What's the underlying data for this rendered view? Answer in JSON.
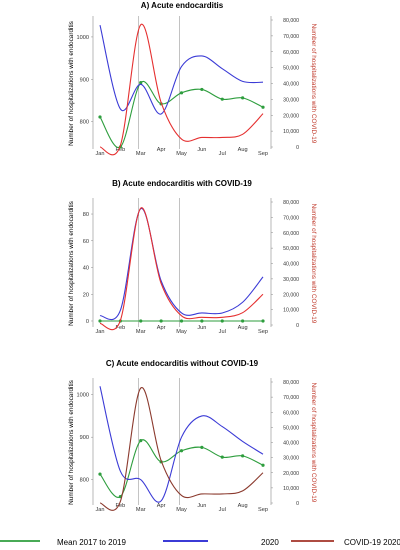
{
  "chart_data": [
    {
      "type": "line",
      "title": "A) Acute endocarditis",
      "ylabel": "Number of hospitalizations with endocarditis",
      "ylabel_right": "Number of hospitalizations with COVID-19",
      "x": [
        "Jan",
        "Feb",
        "Mar",
        "Apr",
        "May",
        "Jun",
        "Jul",
        "Aug",
        "Sep"
      ],
      "ylim": [
        740,
        1040
      ],
      "yticks": [
        "800",
        "900",
        "1000"
      ],
      "ylim_right": [
        0,
        80000
      ],
      "yticks_right": [
        "0",
        "10,000",
        "20,000",
        "30,000",
        "40,000",
        "50,000",
        "60,000",
        "70,000",
        "80,000"
      ],
      "vlines": [
        "Mar",
        "May"
      ],
      "series": [
        {
          "name": "Mean 2017 to 2019",
          "axis": "left",
          "color": "#2e9e3e",
          "markers": true,
          "values": [
            811,
            740,
            892,
            842,
            868,
            876,
            853,
            856,
            834
          ]
        },
        {
          "name": "2020",
          "axis": "left",
          "color": "#3b3bd6",
          "markers": false,
          "values": [
            1028,
            830,
            888,
            818,
            930,
            955,
            925,
            895,
            893
          ]
        },
        {
          "name": "COVID-19 2020",
          "axis": "right",
          "color": "#e53030",
          "markers": false,
          "values": [
            0,
            1000,
            77000,
            28000,
            5000,
            6000,
            6000,
            8000,
            21000
          ]
        }
      ]
    },
    {
      "type": "line",
      "title": "B) Acute endocarditis with COVID-19",
      "ylabel": "Number of hospitalizations with endocarditis",
      "ylabel_right": "Number of hospitalizations with COVID-19",
      "x": [
        "Jan",
        "Feb",
        "Mar",
        "Apr",
        "May",
        "Jun",
        "Jul",
        "Aug",
        "Sep"
      ],
      "ylim": [
        -3,
        89
      ],
      "yticks": [
        "0",
        "20",
        "40",
        "60",
        "80"
      ],
      "ylim_right": [
        0,
        80000
      ],
      "yticks_right": [
        "0",
        "10,000",
        "20,000",
        "30,000",
        "40,000",
        "50,000",
        "60,000",
        "70,000",
        "80,000"
      ],
      "vlines": [
        "Mar",
        "May"
      ],
      "series": [
        {
          "name": "Mean 2017 to 2019",
          "axis": "left",
          "color": "#2e9e3e",
          "markers": true,
          "values": [
            0,
            0,
            0,
            0,
            0,
            0,
            0,
            0,
            0
          ]
        },
        {
          "name": "2020",
          "axis": "left",
          "color": "#3b3bd6",
          "markers": false,
          "values": [
            4,
            8,
            84,
            30,
            6,
            6,
            6,
            14,
            33
          ]
        },
        {
          "name": "COVID-19 2020",
          "axis": "right",
          "color": "#e53030",
          "markers": false,
          "values": [
            1000,
            3000,
            76000,
            27000,
            6000,
            5000,
            5000,
            8000,
            20000
          ]
        }
      ]
    },
    {
      "type": "line",
      "title": "C) Acute endocarditis without COVID-19",
      "ylabel": "Number of hospitalizations with endocarditis",
      "ylabel_right": "Number of hospitalizations with COVID-19",
      "x": [
        "Jan",
        "Feb",
        "Mar",
        "Apr",
        "May",
        "Jun",
        "Jul",
        "Aug",
        "Sep"
      ],
      "ylim": [
        745,
        1030
      ],
      "yticks": [
        "800",
        "900",
        "1000"
      ],
      "ylim_right": [
        0,
        80000
      ],
      "yticks_right": [
        "0",
        "10,000",
        "20,000",
        "30,000",
        "40,000",
        "50,000",
        "60,000",
        "70,000",
        "80,000"
      ],
      "vlines": [
        "Mar",
        "May"
      ],
      "series": [
        {
          "name": "Mean 2017 to 2019",
          "axis": "left",
          "color": "#2e9e3e",
          "markers": true,
          "values": [
            813,
            760,
            892,
            842,
            868,
            876,
            853,
            856,
            834
          ]
        },
        {
          "name": "2020",
          "axis": "left",
          "color": "#3b3bd6",
          "markers": false,
          "values": [
            1020,
            820,
            800,
            750,
            900,
            950,
            925,
            890,
            860
          ]
        },
        {
          "name": "COVID-19 2020",
          "axis": "right",
          "color": "#8b3a2e",
          "markers": false,
          "values": [
            0,
            1000,
            76000,
            28000,
            5000,
            6000,
            6000,
            8000,
            20000
          ]
        }
      ]
    }
  ],
  "legend": [
    {
      "label": "Mean 2017 to 2019",
      "color": "#2e9e3e"
    },
    {
      "label": "2020",
      "color": "#1f1fd0"
    },
    {
      "label": "COVID-19 2020",
      "color": "#a33327"
    }
  ]
}
